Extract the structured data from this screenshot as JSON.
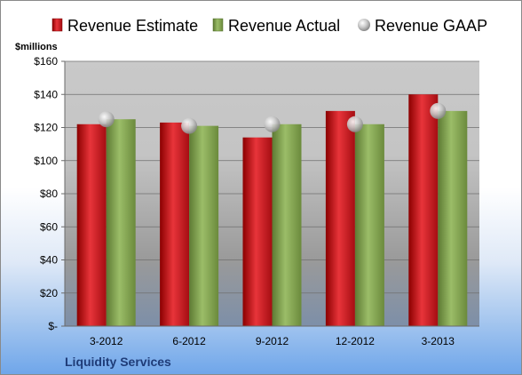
{
  "company": "Liquidity Services",
  "chart_data": {
    "type": "bar",
    "categories": [
      "3-2012",
      "6-2012",
      "9-2012",
      "12-2012",
      "3-2013"
    ],
    "series": [
      {
        "name": "Revenue Estimate",
        "type": "bar",
        "color": "#c00000",
        "values": [
          122,
          123,
          114,
          130,
          140
        ]
      },
      {
        "name": "Revenue Actual",
        "type": "bar",
        "color": "#7ea04d",
        "values": [
          125,
          121,
          122,
          122,
          130
        ]
      },
      {
        "name": "Revenue GAAP",
        "type": "marker",
        "color": "#a6a6a6",
        "values": [
          125,
          121,
          122,
          122,
          130
        ]
      }
    ],
    "ylabel": "$millions",
    "ylim": [
      0,
      160
    ],
    "yticks": [
      0,
      20,
      40,
      60,
      80,
      100,
      120,
      140,
      160
    ],
    "ytick_labels": [
      "$-",
      "$20",
      "$40",
      "$60",
      "$80",
      "$100",
      "$120",
      "$140",
      "$160"
    ],
    "grid": true,
    "legend_position": "top"
  }
}
